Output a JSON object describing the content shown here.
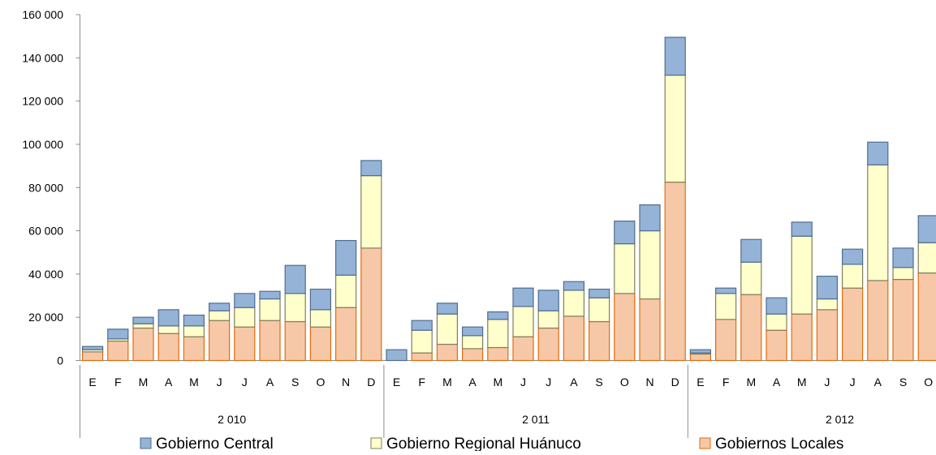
{
  "chart_data": {
    "type": "bar",
    "stacked": true,
    "title": "",
    "xlabel": "",
    "ylabel": "",
    "ylim": [
      0,
      160000
    ],
    "yticks": [
      0,
      20000,
      40000,
      60000,
      80000,
      100000,
      120000,
      140000,
      160000
    ],
    "ytick_labels": [
      "0",
      "20 000",
      "40 000",
      "60 000",
      "80 000",
      "100 000",
      "120 000",
      "140 000",
      "160 000"
    ],
    "grid": false,
    "legend_position": "bottom",
    "groups": [
      {
        "label": "2 010",
        "count": 12
      },
      {
        "label": "2 011",
        "count": 12
      },
      {
        "label": "2 012",
        "count": 10
      }
    ],
    "categories": [
      "E",
      "F",
      "M",
      "A",
      "M",
      "J",
      "J",
      "A",
      "S",
      "O",
      "N",
      "D",
      "E",
      "F",
      "M",
      "A",
      "M",
      "J",
      "J",
      "A",
      "S",
      "O",
      "N",
      "D",
      "E",
      "F",
      "M",
      "A",
      "M",
      "J",
      "J",
      "A",
      "S",
      "O"
    ],
    "series": [
      {
        "name": "Gobiernos Locales",
        "color": "#f6c8a8",
        "stroke": "#e46c0a",
        "values": [
          4000,
          9000,
          15000,
          12500,
          11000,
          18500,
          15500,
          18500,
          18000,
          15500,
          24500,
          52000,
          0,
          3500,
          7500,
          5500,
          6000,
          11000,
          15000,
          20500,
          18000,
          31000,
          28500,
          82500,
          3000,
          19000,
          30500,
          14000,
          21500,
          23500,
          33500,
          37000,
          37500,
          40500
        ]
      },
      {
        "name": "Gobierno Regional Huánuco",
        "color": "#ffffcc",
        "stroke": "#7f7f5f",
        "values": [
          1000,
          1000,
          2000,
          3500,
          5000,
          4500,
          9000,
          10000,
          13000,
          8000,
          15000,
          33500,
          0,
          10500,
          14000,
          6000,
          13000,
          14000,
          8000,
          12000,
          11000,
          23000,
          31500,
          49500,
          500,
          12000,
          15000,
          7500,
          36000,
          5000,
          11000,
          53500,
          5500,
          14000
        ]
      },
      {
        "name": "Gobierno Central",
        "color": "#95b3d7",
        "stroke": "#4f6d8f",
        "values": [
          1500,
          4500,
          3000,
          7500,
          5000,
          3500,
          6500,
          3500,
          13000,
          9500,
          16000,
          7000,
          5000,
          4500,
          5000,
          4000,
          3500,
          8500,
          9500,
          4000,
          4000,
          10500,
          12000,
          17500,
          1500,
          2500,
          10500,
          7500,
          6500,
          10500,
          7000,
          10500,
          9000,
          12500
        ]
      }
    ],
    "legend_items": [
      {
        "label": "Gobierno Central",
        "series_index": 2
      },
      {
        "label": "Gobierno Regional Huánuco",
        "series_index": 1
      },
      {
        "label": "Gobiernos Locales",
        "series_index": 0
      }
    ]
  }
}
